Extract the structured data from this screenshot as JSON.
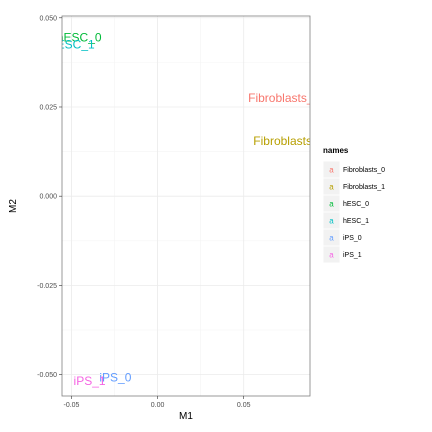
{
  "chart_data": {
    "type": "scatter",
    "title": "",
    "xlabel": "M1",
    "ylabel": "M2",
    "xlim": [
      -0.0555,
      0.0885
    ],
    "ylim": [
      -0.056,
      0.0505
    ],
    "x_ticks": [
      -0.05,
      0.0,
      0.05
    ],
    "x_tick_labels": [
      "-0.05",
      "0.00",
      "0.05"
    ],
    "y_ticks": [
      -0.05,
      -0.025,
      0.0,
      0.025,
      0.05
    ],
    "y_tick_labels": [
      "-0.050",
      "-0.025",
      "0.000",
      "0.025",
      "0.050"
    ],
    "grid": true,
    "legend": {
      "title": "names",
      "position": "right"
    },
    "series": [
      {
        "name": "Fibroblasts_0",
        "label": "Fibroblasts_0",
        "color": "#F8766D",
        "x": 0.0735,
        "y": 0.0275
      },
      {
        "name": "Fibroblasts_1",
        "label": "Fibroblasts_1",
        "color": "#B79F00",
        "x": 0.0765,
        "y": 0.0155
      },
      {
        "name": "hESC_0",
        "label": "hESC_0",
        "color": "#00BA38",
        "x": -0.0455,
        "y": 0.0445
      },
      {
        "name": "hESC_1",
        "label": "hESC_1",
        "color": "#00BFC4",
        "x": -0.0495,
        "y": 0.0425
      },
      {
        "name": "iPS_0",
        "label": "iPS_0",
        "color": "#619CFF",
        "x": -0.0245,
        "y": -0.0508
      },
      {
        "name": "iPS_1",
        "label": "iPS_1",
        "color": "#F564E3",
        "x": -0.0395,
        "y": -0.0518
      }
    ]
  }
}
